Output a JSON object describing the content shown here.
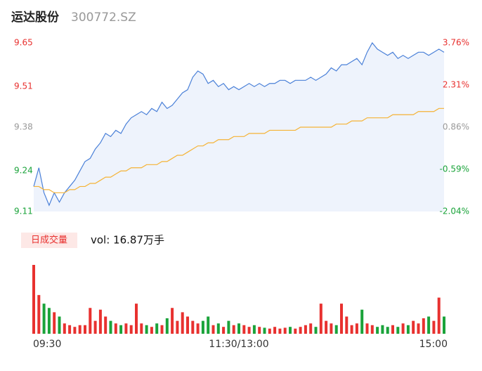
{
  "chart_data": {
    "type": "intraday",
    "title": "运达股份",
    "subtitle": "300772.SZ",
    "volume_title": "日成交量",
    "volume_label": "vol: 16.87万手",
    "categories": [
      "09:30",
      null,
      null,
      null,
      null,
      null,
      null,
      null,
      null,
      null,
      null,
      null,
      null,
      null,
      null,
      null,
      null,
      null,
      null,
      null,
      null,
      null,
      null,
      null,
      null,
      null,
      null,
      null,
      null,
      null,
      null,
      null,
      null,
      null,
      null,
      null,
      null,
      null,
      null,
      null,
      "11:30/13:00",
      null,
      null,
      null,
      null,
      null,
      null,
      null,
      null,
      null,
      null,
      null,
      null,
      null,
      null,
      null,
      null,
      null,
      null,
      null,
      null,
      null,
      null,
      null,
      null,
      null,
      null,
      null,
      null,
      null,
      null,
      null,
      null,
      null,
      null,
      null,
      null,
      null,
      null,
      null,
      "15:00"
    ],
    "series": [
      {
        "name": "price",
        "color": "#4a80d8",
        "values": [
          9.19,
          9.25,
          9.17,
          9.13,
          9.17,
          9.14,
          9.17,
          9.19,
          9.21,
          9.24,
          9.27,
          9.28,
          9.31,
          9.33,
          9.36,
          9.35,
          9.37,
          9.36,
          9.39,
          9.41,
          9.42,
          9.43,
          9.42,
          9.44,
          9.43,
          9.46,
          9.44,
          9.45,
          9.47,
          9.49,
          9.5,
          9.54,
          9.56,
          9.55,
          9.52,
          9.53,
          9.51,
          9.52,
          9.5,
          9.51,
          9.5,
          9.51,
          9.52,
          9.51,
          9.52,
          9.51,
          9.52,
          9.52,
          9.53,
          9.53,
          9.52,
          9.53,
          9.53,
          9.53,
          9.54,
          9.53,
          9.54,
          9.55,
          9.57,
          9.56,
          9.58,
          9.58,
          9.59,
          9.6,
          9.58,
          9.62,
          9.65,
          9.63,
          9.62,
          9.61,
          9.62,
          9.6,
          9.61,
          9.6,
          9.61,
          9.62,
          9.62,
          9.61,
          9.62,
          9.63,
          9.62
        ]
      },
      {
        "name": "average",
        "color": "#f5b335",
        "values": [
          9.19,
          9.19,
          9.18,
          9.18,
          9.17,
          9.17,
          9.17,
          9.18,
          9.18,
          9.19,
          9.19,
          9.2,
          9.2,
          9.21,
          9.22,
          9.22,
          9.23,
          9.24,
          9.24,
          9.25,
          9.25,
          9.25,
          9.26,
          9.26,
          9.26,
          9.27,
          9.27,
          9.28,
          9.29,
          9.29,
          9.3,
          9.31,
          9.32,
          9.32,
          9.33,
          9.33,
          9.34,
          9.34,
          9.34,
          9.35,
          9.35,
          9.35,
          9.36,
          9.36,
          9.36,
          9.36,
          9.37,
          9.37,
          9.37,
          9.37,
          9.37,
          9.37,
          9.38,
          9.38,
          9.38,
          9.38,
          9.38,
          9.38,
          9.38,
          9.39,
          9.39,
          9.39,
          9.4,
          9.4,
          9.4,
          9.41,
          9.41,
          9.41,
          9.41,
          9.41,
          9.42,
          9.42,
          9.42,
          9.42,
          9.42,
          9.43,
          9.43,
          9.43,
          9.43,
          9.44,
          9.44
        ]
      }
    ],
    "volume": [
      0.8,
      0.45,
      0.35,
      0.3,
      0.25,
      0.2,
      0.12,
      0.1,
      0.08,
      0.1,
      0.1,
      0.3,
      0.15,
      0.28,
      0.2,
      0.15,
      0.12,
      0.1,
      0.12,
      0.1,
      0.35,
      0.12,
      0.1,
      0.08,
      0.12,
      0.1,
      0.18,
      0.3,
      0.15,
      0.25,
      0.2,
      0.15,
      0.12,
      0.15,
      0.2,
      0.1,
      0.12,
      0.08,
      0.15,
      0.1,
      0.12,
      0.1,
      0.08,
      0.1,
      0.08,
      0.07,
      0.06,
      0.08,
      0.06,
      0.07,
      0.08,
      0.06,
      0.08,
      0.1,
      0.12,
      0.08,
      0.35,
      0.15,
      0.12,
      0.1,
      0.35,
      0.2,
      0.1,
      0.12,
      0.28,
      0.12,
      0.1,
      0.08,
      0.1,
      0.08,
      0.1,
      0.08,
      0.12,
      0.1,
      0.15,
      0.12,
      0.18,
      0.2,
      0.15,
      0.42,
      0.2
    ],
    "volume_ylim": [
      0,
      0.8
    ],
    "up_color": "#e8312f",
    "down_color": "#1aa33a",
    "flat_color": "#999999",
    "ylim": [
      9.11,
      9.65
    ],
    "yticks": [
      9.65,
      9.51,
      9.38,
      9.24,
      9.11
    ],
    "y2lim": [
      -2.04,
      3.76
    ],
    "y2ticks": [
      {
        "value": 3.76,
        "label": "3.76%"
      },
      {
        "value": 2.31,
        "label": "2.31%"
      },
      {
        "value": 0.86,
        "label": "0.86%"
      },
      {
        "value": -0.59,
        "label": "-0.59%"
      },
      {
        "value": -2.04,
        "label": "-2.04%"
      }
    ]
  }
}
